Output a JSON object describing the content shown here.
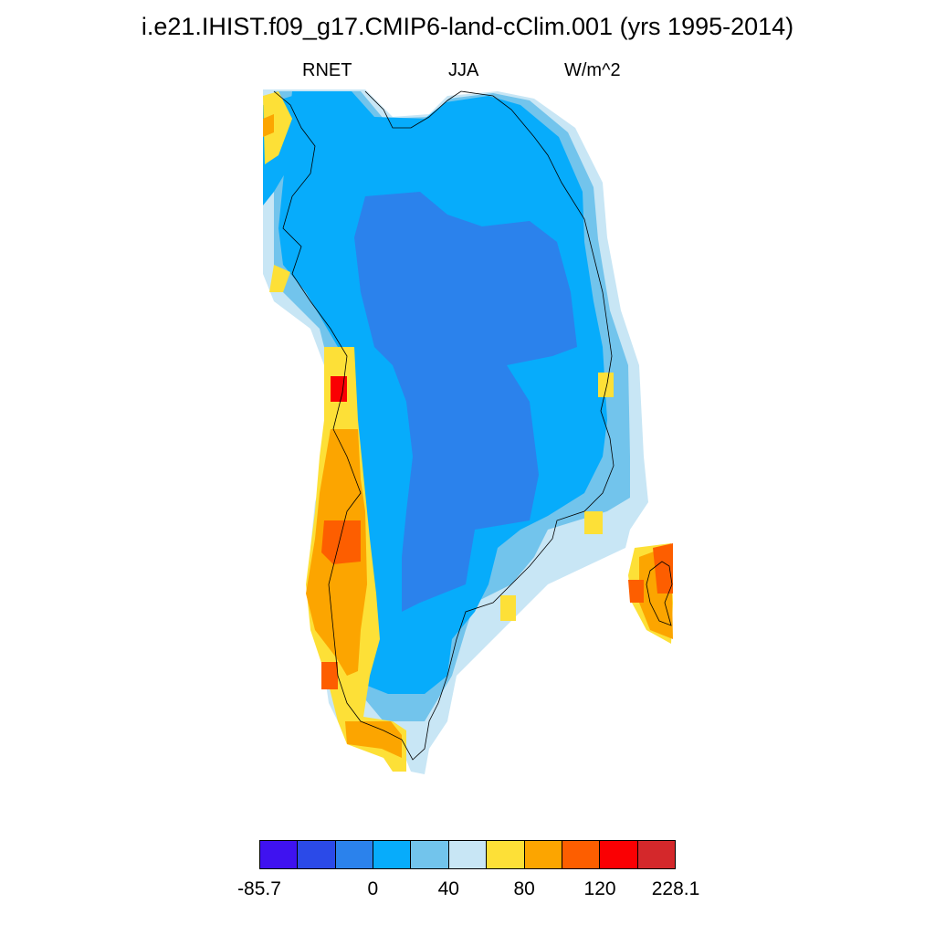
{
  "title": "i.e21.IHIST.f09_g17.CMIP6-land-cClim.001 (yrs 1995-2014)",
  "subtitle": {
    "variable": "RNET",
    "season": "JJA",
    "units": "W/m^2"
  },
  "colorbar": {
    "colors": [
      "#3f12f0",
      "#2b4ae8",
      "#2b82ec",
      "#07acfb",
      "#72c4ec",
      "#c8e6f5",
      "#fde037",
      "#fca500",
      "#fd5e00",
      "#fa0003",
      "#d4282b"
    ],
    "labels": [
      {
        "text": "-85.7",
        "index": 0
      },
      {
        "text": "0",
        "index": 3
      },
      {
        "text": "40",
        "index": 5
      },
      {
        "text": "80",
        "index": 7
      },
      {
        "text": "120",
        "index": 9
      },
      {
        "text": "228.1",
        "index": 11
      }
    ]
  },
  "map": {
    "region": "Greenland",
    "field": "RNET",
    "layers": [
      {
        "name": "light-blue",
        "color_index": 5
      },
      {
        "name": "medium-light-blue",
        "color_index": 4
      },
      {
        "name": "sky-blue",
        "color_index": 3
      },
      {
        "name": "blue",
        "color_index": 2
      },
      {
        "name": "yellow",
        "color_index": 6
      },
      {
        "name": "orange",
        "color_index": 7
      },
      {
        "name": "dark-orange",
        "color_index": 8
      },
      {
        "name": "red",
        "color_index": 9
      }
    ]
  }
}
